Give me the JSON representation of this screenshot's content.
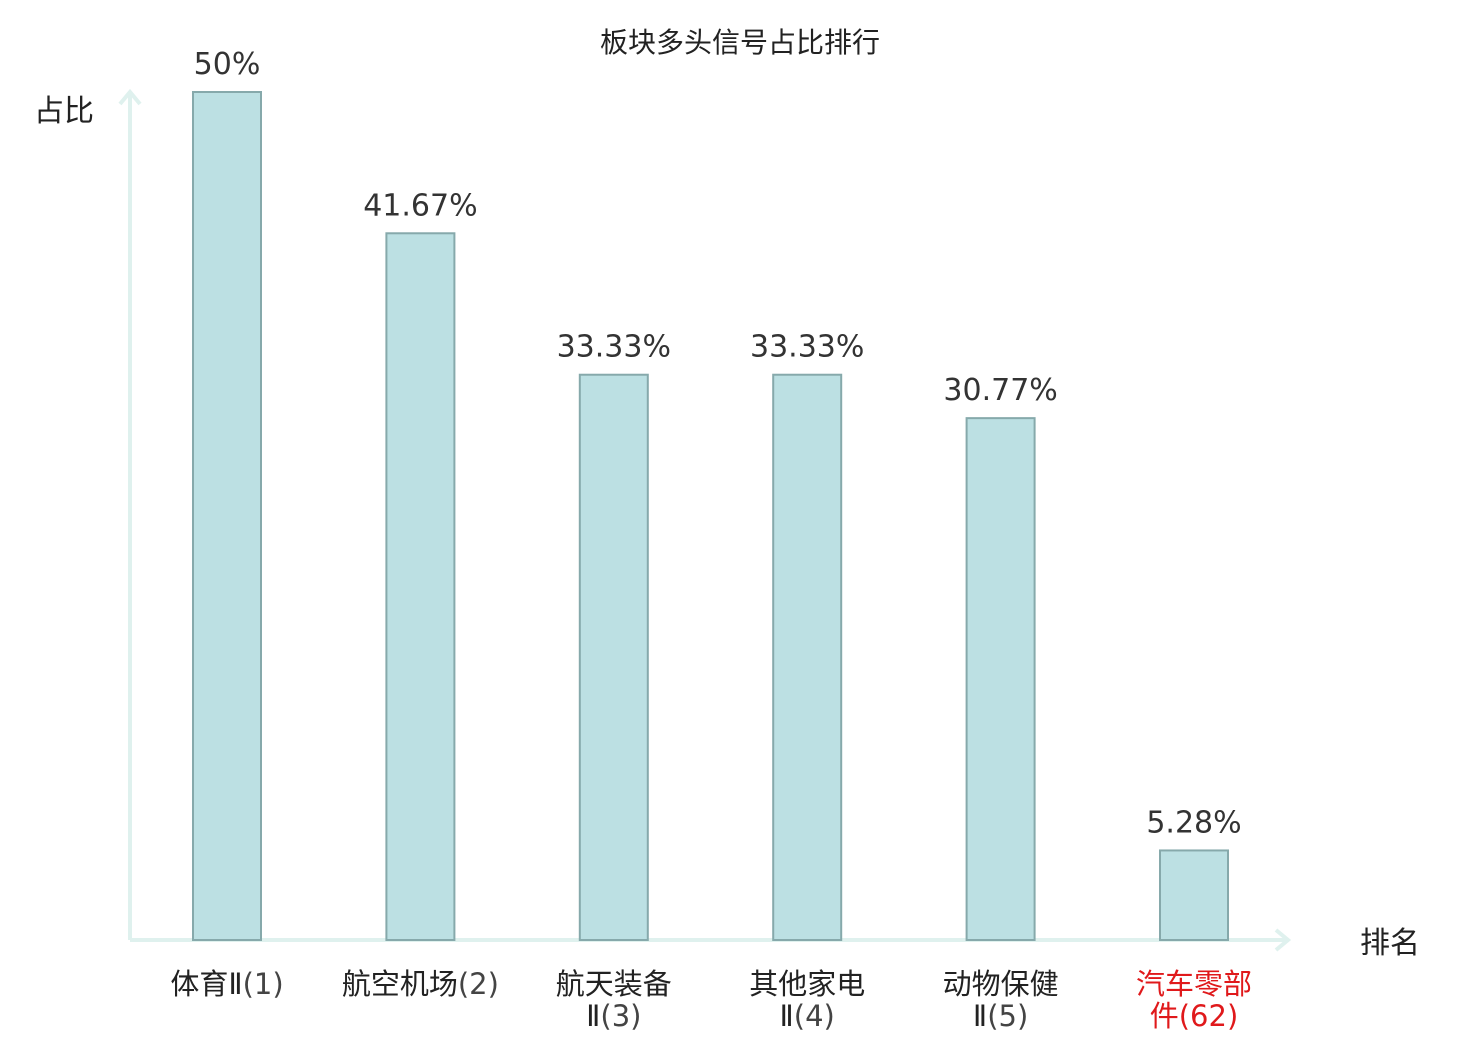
{
  "chart_data": {
    "type": "bar",
    "title": "板块多头信号占比排行",
    "ylabel": "占比",
    "xlabel": "排名",
    "ylim": [
      0,
      50
    ],
    "grid": false,
    "categories": [
      {
        "name": "体育Ⅱ",
        "rank": "(1)",
        "highlight": false
      },
      {
        "name": "航空机场",
        "rank": "(2)",
        "highlight": false
      },
      {
        "name": "航天装备Ⅱ",
        "rank": "(3)",
        "highlight": false
      },
      {
        "name": "其他家电Ⅱ",
        "rank": "(4)",
        "highlight": false
      },
      {
        "name": "动物保健Ⅱ",
        "rank": "(5)",
        "highlight": false
      },
      {
        "name": "汽车零部件",
        "rank": "(62)",
        "highlight": true
      }
    ],
    "values": [
      50,
      41.67,
      33.33,
      33.33,
      30.77,
      5.28
    ],
    "value_labels": [
      "50%",
      "41.67%",
      "33.33%",
      "33.33%",
      "30.77%",
      "5.28%"
    ],
    "colors": {
      "bar_fill": "#bce0e3",
      "bar_stroke": "#86a9ab",
      "axis": "#dff1ee",
      "text": "#222222",
      "rank_text": "#444444",
      "highlight": "#e0191b"
    }
  }
}
